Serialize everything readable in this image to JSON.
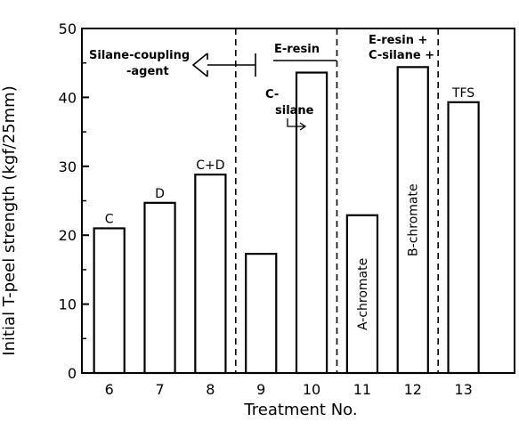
{
  "chart_data": {
    "type": "bar",
    "categories": [
      "6",
      "7",
      "8",
      "9",
      "10",
      "11",
      "12",
      "13"
    ],
    "values": [
      21,
      24.7,
      28.8,
      17.3,
      43.6,
      22.9,
      44.4,
      39.3
    ],
    "bar_labels": [
      "C",
      "D",
      "C+D",
      "",
      "",
      "",
      "",
      "TFS"
    ],
    "inner_labels": [
      "",
      "",
      "",
      "",
      "",
      "A-chromate",
      "B-chromate",
      ""
    ],
    "xlabel": "Treatment No.",
    "ylabel": "Initial T-peel strength (kgf/25mm)",
    "ylim": [
      0,
      50
    ],
    "yticks": [
      "0",
      "10",
      "20",
      "30",
      "40",
      "50"
    ],
    "group_dividers_after": [
      "8",
      "10",
      "12"
    ],
    "grid": false,
    "annotations": {
      "silane_line1": "Silane-coupling",
      "silane_line2": "-agent",
      "e_resin": "E-resin",
      "c_silane_line1": "C-",
      "c_silane_line2": "silane",
      "e_resin_plus": "E-resin +",
      "c_silane_plus": "C-silane +"
    }
  }
}
